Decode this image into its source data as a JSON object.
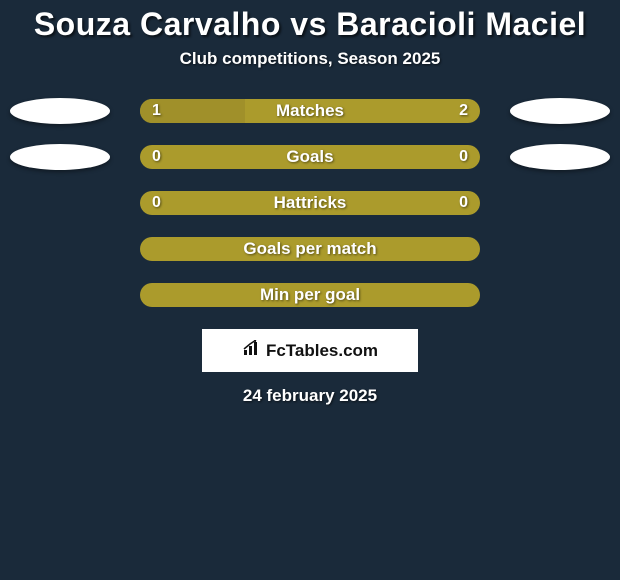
{
  "title": "Souza Carvalho vs Baracioli Maciel",
  "subtitle": "Club competitions, Season 2025",
  "background_color": "#1a2a3a",
  "avatar_bg": "#ffffff",
  "rows": [
    {
      "label": "Matches",
      "left": "1",
      "right": "2",
      "show_avatar_left": true,
      "show_avatar_right": true,
      "bar_bg": "#ab9b2c",
      "fill_color": "#a0902a",
      "left_fill_pct": 31,
      "right_fill_pct": 0
    },
    {
      "label": "Goals",
      "left": "0",
      "right": "0",
      "show_avatar_left": true,
      "show_avatar_right": true,
      "bar_bg": "#ab9b2c",
      "fill_color": "#a0902a",
      "left_fill_pct": 0,
      "right_fill_pct": 0
    },
    {
      "label": "Hattricks",
      "left": "0",
      "right": "0",
      "show_avatar_left": false,
      "show_avatar_right": false,
      "bar_bg": "#ab9b2c",
      "fill_color": "#a0902a",
      "left_fill_pct": 0,
      "right_fill_pct": 0
    },
    {
      "label": "Goals per match",
      "left": "",
      "right": "",
      "show_avatar_left": false,
      "show_avatar_right": false,
      "bar_bg": "#ab9b2c",
      "fill_color": "#a0902a",
      "left_fill_pct": 0,
      "right_fill_pct": 0
    },
    {
      "label": "Min per goal",
      "left": "",
      "right": "",
      "show_avatar_left": false,
      "show_avatar_right": false,
      "bar_bg": "#ab9b2c",
      "fill_color": "#a0902a",
      "left_fill_pct": 0,
      "right_fill_pct": 0
    }
  ],
  "brand": {
    "text": "FcTables.com",
    "bg": "#ffffff",
    "text_color": "#111111"
  },
  "date": "24 february 2025",
  "title_fontsize": 32,
  "subtitle_fontsize": 17,
  "label_fontsize": 17,
  "value_fontsize": 16
}
